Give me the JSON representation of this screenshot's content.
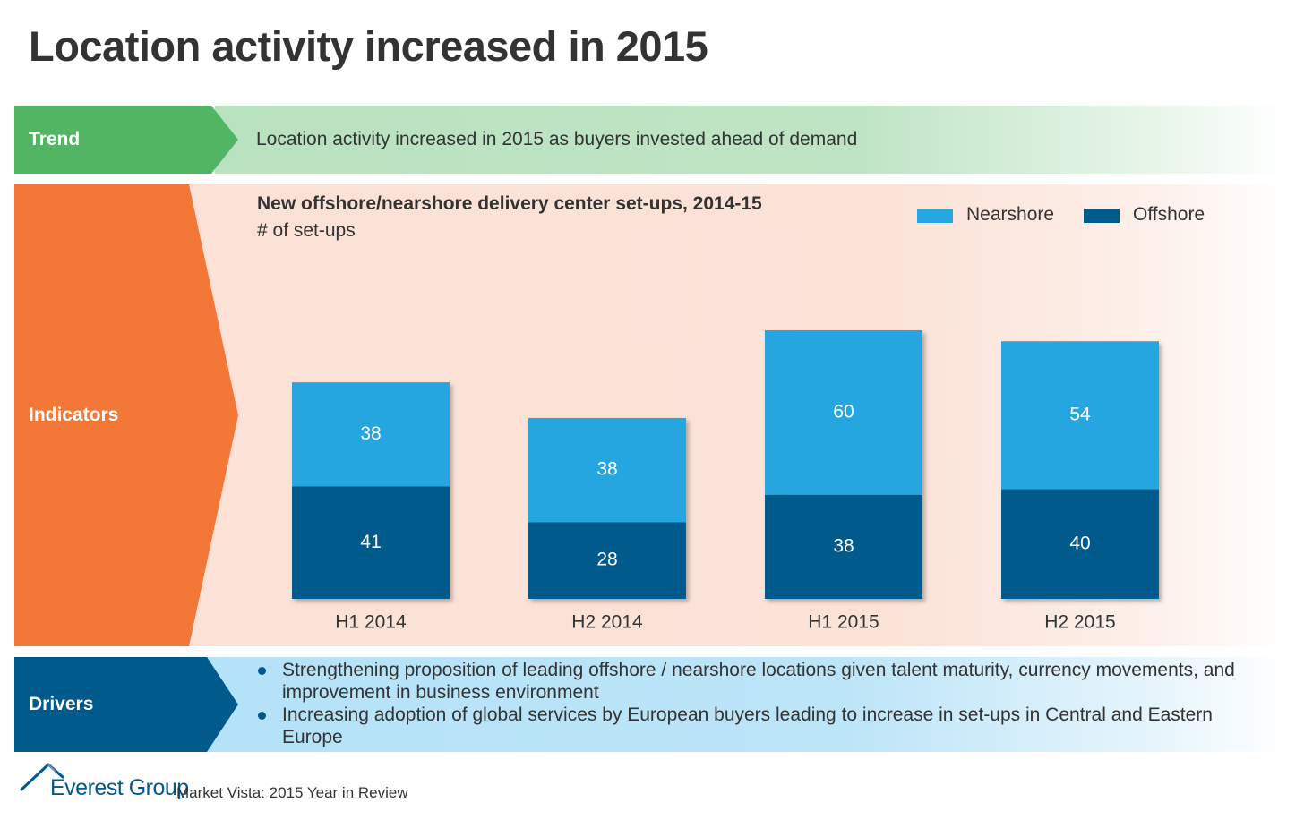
{
  "title": "Location activity increased in 2015",
  "trend": {
    "label": "Trend",
    "text": "Location activity increased in 2015 as buyers invested ahead of demand"
  },
  "indicators": {
    "label": "Indicators"
  },
  "drivers": {
    "label": "Drivers",
    "items": [
      "Strengthening proposition of leading offshore / nearshore locations given talent maturity, currency movements, and improvement in business environment",
      "Increasing adoption of global services by European buyers leading to increase in set-ups in Central and Eastern Europe"
    ]
  },
  "footer": {
    "brand": "Everest Group",
    "caption": "Market Vista: 2015 Year in Review"
  },
  "colors": {
    "trend": "#52b563",
    "indicators": "#f37736",
    "drivers": "#005a8c",
    "nearshore": "#27a6e0",
    "offshore": "#005a8c"
  },
  "chart_data": {
    "type": "bar",
    "stacked": true,
    "title": "New offshore/nearshore delivery center set-ups, 2014-15",
    "subtitle": "# of set-ups",
    "categories": [
      "H1 2014",
      "H2 2014",
      "H1 2015",
      "H2 2015"
    ],
    "series": [
      {
        "name": "Offshore",
        "values": [
          41,
          28,
          38,
          40
        ],
        "color": "#005a8c"
      },
      {
        "name": "Nearshore",
        "values": [
          38,
          38,
          60,
          54
        ],
        "color": "#27a6e0"
      }
    ],
    "legend": {
      "placement": "top-right",
      "order": [
        "Nearshore",
        "Offshore"
      ]
    },
    "grid": false,
    "ylim": [
      0,
      98
    ]
  }
}
